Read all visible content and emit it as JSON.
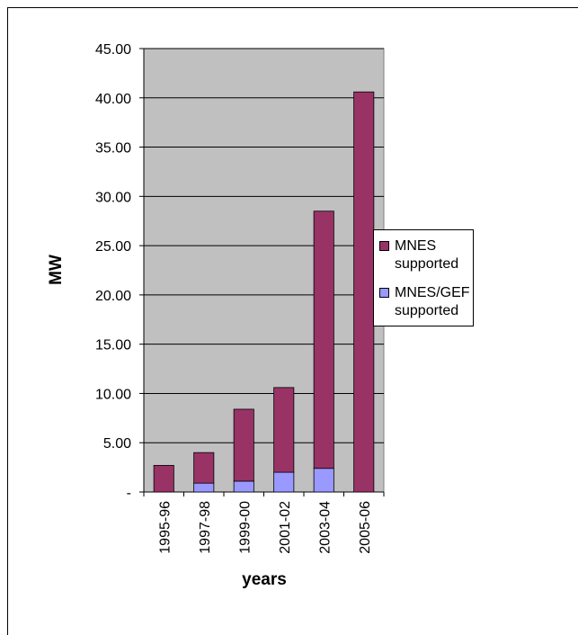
{
  "chart_data": {
    "type": "stacked-bar",
    "y_label": "MW",
    "x_label": "years",
    "categories": [
      "1995-96",
      "1997-98",
      "1999-00",
      "2001-02",
      "2003-04",
      "2005-06"
    ],
    "series": [
      {
        "name": "MNES/GEF supported",
        "color": "#9999ff",
        "values": [
          0,
          0.9,
          1.1,
          2.0,
          2.4,
          0
        ]
      },
      {
        "name": "MNES supported",
        "color": "#993366",
        "values": [
          2.7,
          3.1,
          7.3,
          8.6,
          26.1,
          40.6
        ]
      }
    ],
    "ylim": [
      0,
      45
    ],
    "yticks": [
      {
        "value": 0,
        "label": "-"
      },
      {
        "value": 5,
        "label": "5.00"
      },
      {
        "value": 10,
        "label": "10.00"
      },
      {
        "value": 15,
        "label": "15.00"
      },
      {
        "value": 20,
        "label": "20.00"
      },
      {
        "value": 25,
        "label": "25.00"
      },
      {
        "value": 30,
        "label": "30.00"
      },
      {
        "value": 35,
        "label": "35.00"
      },
      {
        "value": 40,
        "label": "40.00"
      },
      {
        "value": 45,
        "label": "45.00"
      }
    ],
    "grid": true,
    "plot_background": "#c0c0c0"
  }
}
